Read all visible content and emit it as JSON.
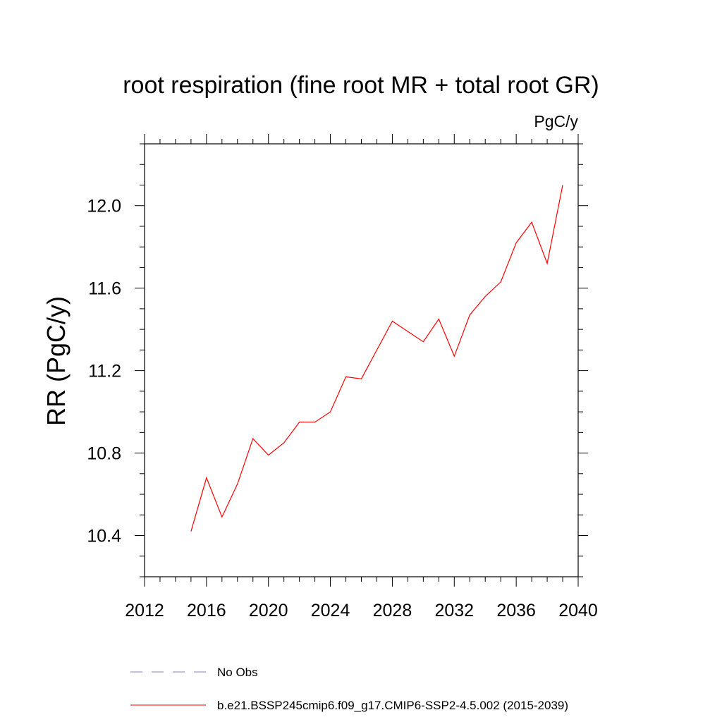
{
  "chart_data": {
    "type": "line",
    "title": "root respiration (fine root MR + total root GR)",
    "units": "PgC/y",
    "ylabel": "RR  (PgC/y)",
    "xlabel": "",
    "xlim": [
      2012,
      2040
    ],
    "ylim": [
      10.2,
      12.3
    ],
    "xticks": [
      2012,
      2016,
      2020,
      2024,
      2028,
      2032,
      2036,
      2040
    ],
    "yticks": [
      10.4,
      10.8,
      11.2,
      11.6,
      12.0
    ],
    "xtick_labels": [
      "2012",
      "2016",
      "2020",
      "2024",
      "2028",
      "2032",
      "2036",
      "2040"
    ],
    "ytick_labels": [
      "10.4",
      "10.8",
      "11.2",
      "11.6",
      "12.0"
    ],
    "grid": false,
    "legend_position": "bottom",
    "series": [
      {
        "name": "b.e21.BSSP245cmip6.f09_g17.CMIP6-SSP2-4.5.002 (2015-2039)",
        "color": "#ff0000",
        "style": "solid",
        "x": [
          2015,
          2016,
          2017,
          2018,
          2019,
          2020,
          2021,
          2022,
          2023,
          2024,
          2025,
          2026,
          2027,
          2028,
          2029,
          2030,
          2031,
          2032,
          2033,
          2034,
          2035,
          2036,
          2037,
          2038,
          2039
        ],
        "values": [
          10.42,
          10.68,
          10.49,
          10.65,
          10.87,
          10.79,
          10.85,
          10.95,
          10.95,
          11.0,
          11.17,
          11.16,
          11.3,
          11.44,
          11.39,
          11.34,
          11.45,
          11.27,
          11.47,
          11.56,
          11.63,
          11.82,
          11.92,
          11.72,
          12.1
        ]
      }
    ],
    "legend": [
      {
        "label": "No Obs",
        "color": "#8080c0",
        "style": "dashed"
      },
      {
        "label": "b.e21.BSSP245cmip6.f09_g17.CMIP6-SSP2-4.5.002 (2015-2039)",
        "color": "#ff0000",
        "style": "solid"
      }
    ]
  }
}
